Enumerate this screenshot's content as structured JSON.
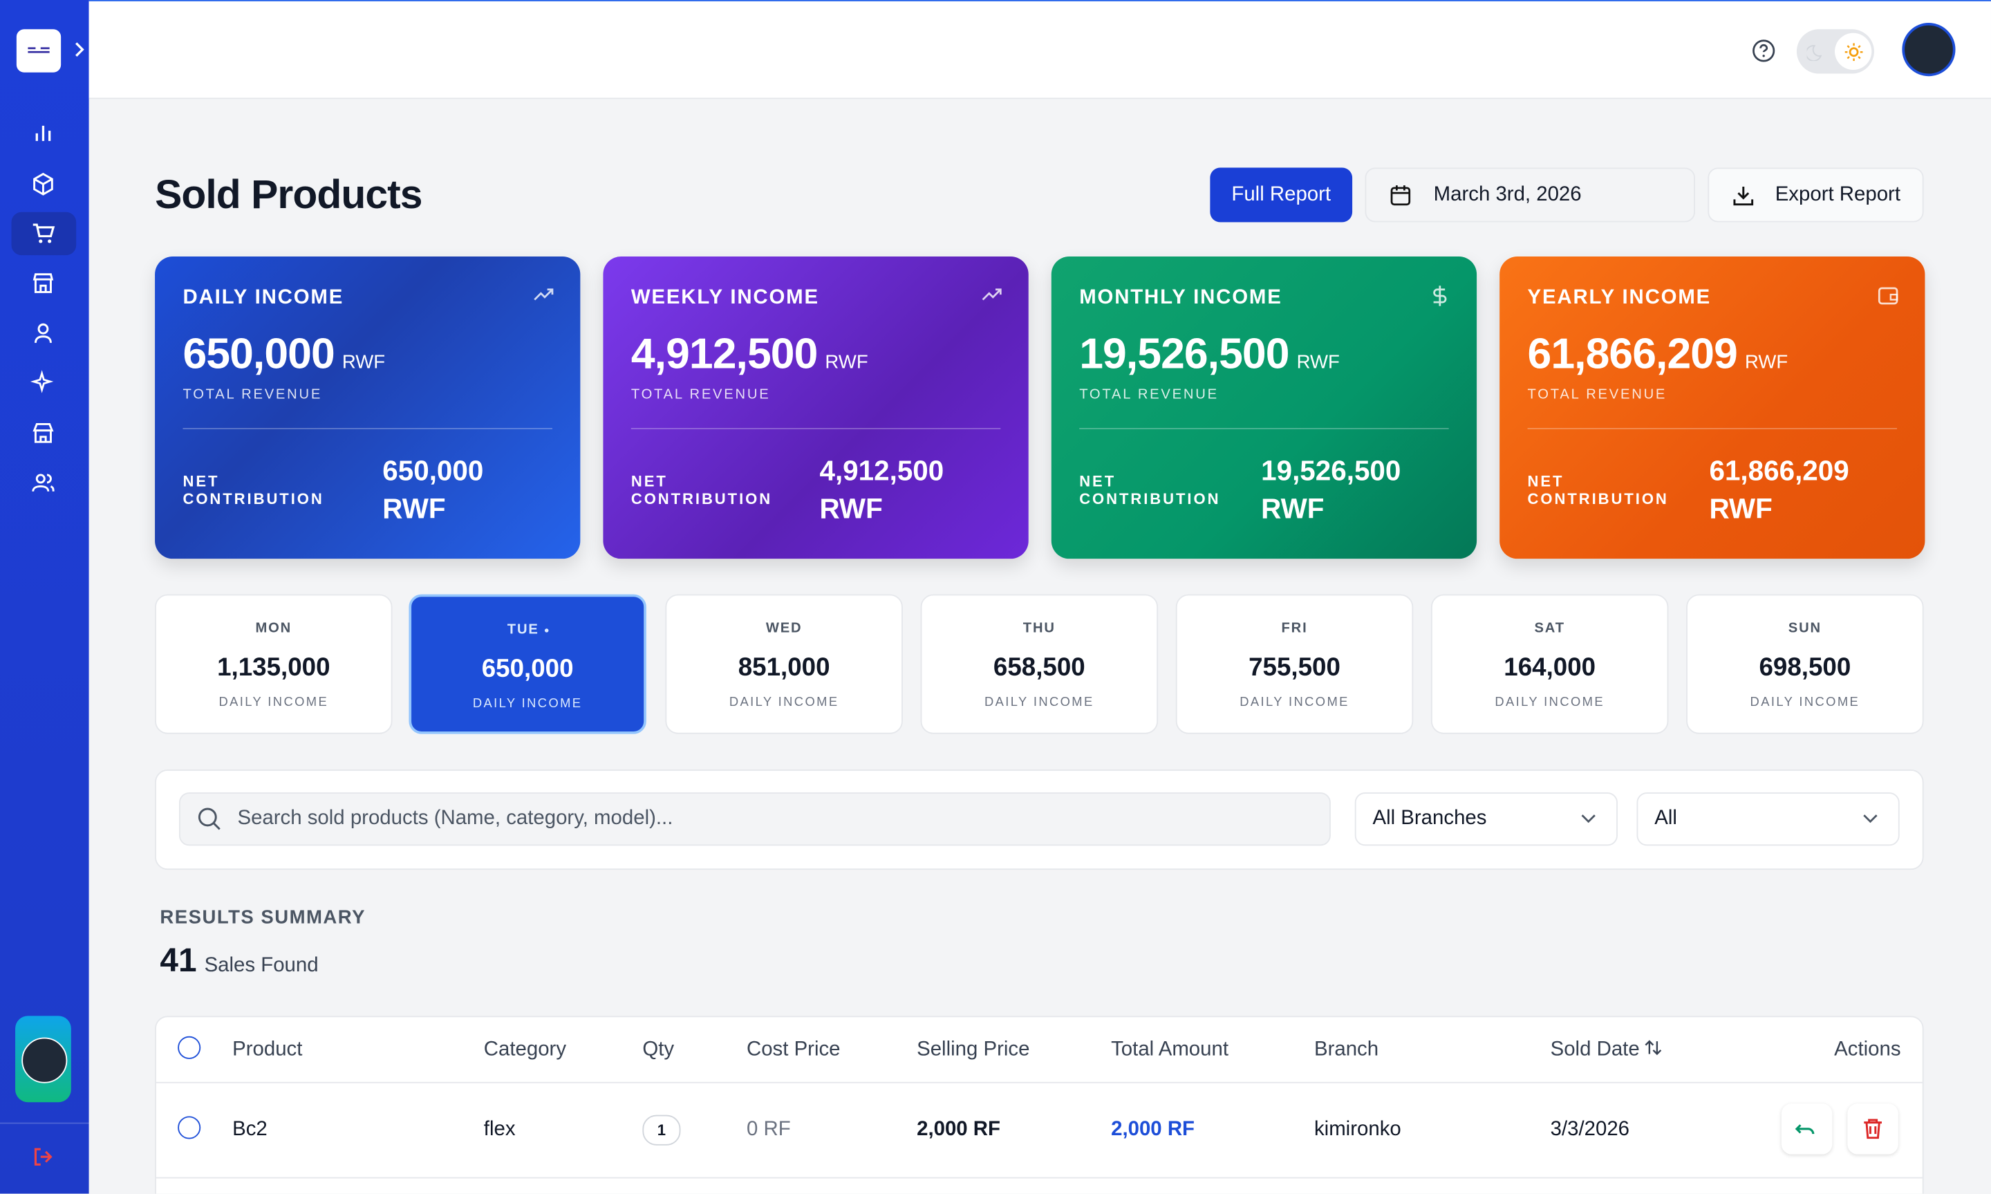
{
  "page": {
    "title": "Sold Products",
    "full_report": "Full Report",
    "date": "March 3rd, 2026",
    "export": "Export Report"
  },
  "cards": [
    {
      "label": "DAILY INCOME",
      "value": "650,000",
      "unit": "RWF",
      "sublabel": "TOTAL REVENUE",
      "net_label": "NET CONTRIBUTION",
      "net_value": "650,000 RWF"
    },
    {
      "label": "WEEKLY INCOME",
      "value": "4,912,500",
      "unit": "RWF",
      "sublabel": "TOTAL REVENUE",
      "net_label": "NET CONTRIBUTION",
      "net_value": "4,912,500 RWF"
    },
    {
      "label": "MONTHLY INCOME",
      "value": "19,526,500",
      "unit": "RWF",
      "sublabel": "TOTAL REVENUE",
      "net_label": "NET CONTRIBUTION",
      "net_value": "19,526,500 RWF"
    },
    {
      "label": "YEARLY INCOME",
      "value": "61,866,209",
      "unit": "RWF",
      "sublabel": "TOTAL REVENUE",
      "net_label": "NET CONTRIBUTION",
      "net_value": "61,866,209 RWF"
    }
  ],
  "days": [
    {
      "day": "MON",
      "value": "1,135,000",
      "label": "DAILY INCOME"
    },
    {
      "day": "TUE",
      "value": "650,000",
      "label": "DAILY INCOME"
    },
    {
      "day": "WED",
      "value": "851,000",
      "label": "DAILY INCOME"
    },
    {
      "day": "THU",
      "value": "658,500",
      "label": "DAILY INCOME"
    },
    {
      "day": "FRI",
      "value": "755,500",
      "label": "DAILY INCOME"
    },
    {
      "day": "SAT",
      "value": "164,000",
      "label": "DAILY INCOME"
    },
    {
      "day": "SUN",
      "value": "698,500",
      "label": "DAILY INCOME"
    }
  ],
  "filters": {
    "search_placeholder": "Search sold products (Name, category, model)...",
    "branch": "All Branches",
    "status": "All"
  },
  "summary": {
    "heading": "RESULTS SUMMARY",
    "count": "41",
    "label": "Sales Found"
  },
  "table": {
    "columns": [
      "Product",
      "Category",
      "Qty",
      "Cost Price",
      "Selling Price",
      "Total Amount",
      "Branch",
      "Sold Date",
      "Actions"
    ],
    "rows": [
      [
        "Bc2",
        "flex",
        "1",
        "0 RF",
        "2,000 RF",
        "2,000 RF",
        "kimironko",
        "3/3/2026"
      ]
    ]
  }
}
